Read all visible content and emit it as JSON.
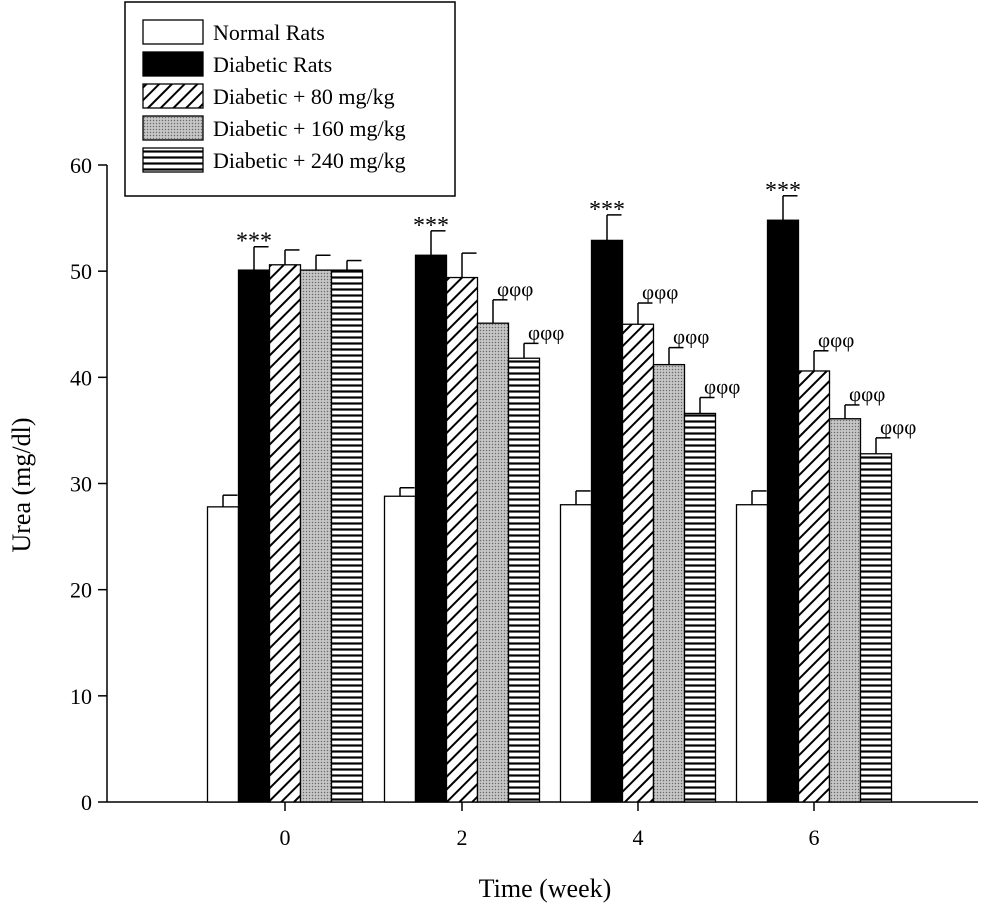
{
  "chart_data": {
    "type": "bar",
    "title": "",
    "xlabel": "Time (week)",
    "ylabel": "Urea (mg/dl)",
    "ylim": [
      0,
      60
    ],
    "yticks": [
      0,
      10,
      20,
      30,
      40,
      50,
      60
    ],
    "categories": [
      "0",
      "2",
      "4",
      "6"
    ],
    "legend_position": "top-left",
    "series": [
      {
        "name": "Normal Rats",
        "pattern": "white",
        "values": [
          27.8,
          28.8,
          28.0,
          28.0
        ],
        "errors": [
          1.1,
          0.8,
          1.3,
          1.3
        ],
        "annotations": [
          "",
          "",
          "",
          ""
        ]
      },
      {
        "name": "Diabetic Rats",
        "pattern": "black",
        "values": [
          50.1,
          51.5,
          52.9,
          54.8
        ],
        "errors": [
          2.2,
          2.3,
          2.4,
          2.3
        ],
        "annotations": [
          "***",
          "***",
          "***",
          "***"
        ]
      },
      {
        "name": "Diabetic + 80 mg/kg",
        "pattern": "diagonal",
        "values": [
          50.6,
          49.4,
          45.0,
          40.6
        ],
        "errors": [
          1.4,
          2.3,
          2.0,
          1.9
        ],
        "annotations": [
          "",
          "",
          "φφφ",
          "φφφ"
        ]
      },
      {
        "name": "Diabetic + 160 mg/kg",
        "pattern": "dotted",
        "values": [
          50.1,
          45.1,
          41.2,
          36.1
        ],
        "errors": [
          1.4,
          2.2,
          1.6,
          1.3
        ],
        "annotations": [
          "",
          "φφφ",
          "φφφ",
          "φφφ"
        ]
      },
      {
        "name": "Diabetic + 240 mg/kg",
        "pattern": "horizontal",
        "values": [
          50.1,
          41.8,
          36.6,
          32.8
        ],
        "errors": [
          0.9,
          1.4,
          1.5,
          1.5
        ],
        "annotations": [
          "",
          "φφφ",
          "φφφ",
          "φφφ"
        ]
      }
    ]
  }
}
